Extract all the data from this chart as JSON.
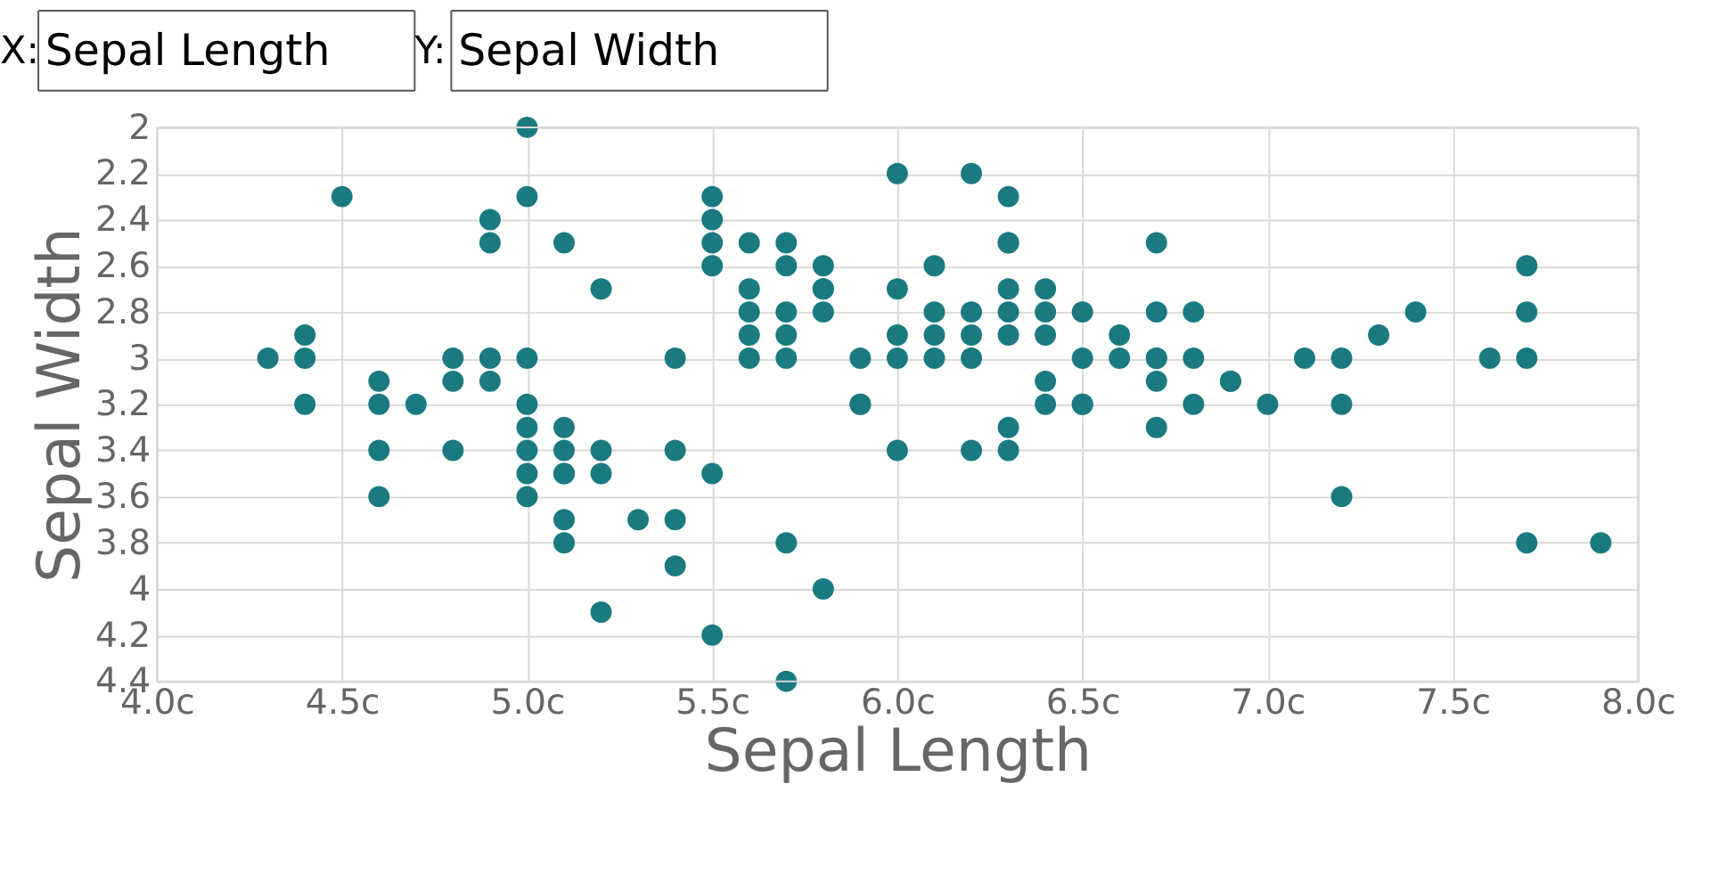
{
  "chart_data": {
    "type": "scatter",
    "xlabel": "Sepal Length",
    "ylabel": "Sepal Width",
    "annotations": [
      "X:",
      "Sepal Length",
      "Y:",
      "Sepal Width"
    ],
    "x": [
      5.1,
      4.9,
      4.7,
      4.6,
      5.0,
      5.4,
      4.6,
      5.0,
      4.4,
      4.9,
      5.4,
      4.8,
      4.8,
      4.3,
      5.8,
      5.7,
      5.7,
      5.1,
      5.4,
      5.1,
      4.6,
      5.1,
      5.0,
      5.2,
      5.2,
      4.8,
      5.2,
      5.5,
      5.0,
      5.5,
      4.4,
      5.1,
      5.0,
      4.5,
      4.4,
      5.1,
      4.6,
      5.3,
      5.0,
      7.0,
      6.4,
      6.9,
      5.5,
      6.5,
      5.7,
      6.3,
      4.9,
      6.6,
      5.2,
      5.0,
      5.9,
      6.0,
      6.1,
      5.6,
      6.7,
      5.6,
      5.8,
      6.2,
      5.6,
      5.9,
      6.1,
      6.3,
      6.4,
      6.6,
      6.8,
      6.7,
      6.0,
      5.7,
      5.5,
      6.0,
      5.4,
      6.0,
      6.3,
      5.5,
      5.5,
      6.1,
      5.8,
      5.0,
      5.6,
      5.7,
      5.7,
      6.2,
      5.1,
      7.1,
      6.3,
      6.5,
      7.6,
      4.9,
      7.3,
      6.7,
      7.2,
      6.5,
      6.4,
      6.8,
      5.7,
      5.8,
      7.7,
      7.7,
      5.6,
      7.7,
      6.3,
      6.7,
      7.2,
      6.2,
      6.4,
      7.2,
      7.4,
      7.9,
      6.3,
      6.1,
      7.7,
      6.3,
      6.4,
      6.0,
      6.9,
      6.8,
      6.7,
      6.3,
      6.2,
      5.9,
      6.2,
      5.8,
      6.5,
      6.7
    ],
    "series": [
      {
        "color": "#1a7a80",
        "values": [
          3.5,
          3.0,
          3.2,
          3.1,
          3.6,
          3.9,
          3.4,
          3.4,
          2.9,
          3.1,
          3.7,
          3.4,
          3.0,
          3.0,
          4.0,
          4.4,
          3.8,
          3.8,
          3.4,
          3.7,
          3.6,
          3.3,
          3.0,
          3.5,
          3.4,
          3.1,
          4.1,
          4.2,
          3.2,
          3.5,
          3.0,
          3.4,
          3.5,
          2.3,
          3.2,
          3.5,
          3.2,
          3.7,
          3.3,
          3.2,
          3.2,
          3.1,
          2.3,
          2.8,
          2.8,
          3.3,
          2.4,
          2.9,
          2.7,
          2.0,
          3.0,
          2.2,
          2.9,
          2.9,
          3.1,
          3.0,
          2.7,
          2.2,
          2.5,
          3.2,
          2.8,
          2.5,
          2.9,
          3.0,
          2.8,
          3.0,
          2.9,
          2.6,
          2.4,
          2.7,
          3.0,
          3.4,
          2.3,
          2.5,
          2.6,
          3.0,
          2.6,
          2.3,
          2.7,
          3.0,
          2.9,
          2.9,
          2.5,
          3.0,
          2.9,
          3.0,
          3.0,
          2.5,
          2.9,
          2.5,
          3.6,
          3.2,
          2.7,
          3.0,
          2.5,
          2.8,
          3.8,
          2.6,
          2.8,
          2.8,
          2.7,
          3.3,
          3.2,
          2.8,
          2.8,
          3.0,
          2.8,
          3.8,
          2.8,
          2.6,
          3.0,
          3.4,
          3.1,
          3.0,
          3.1,
          3.2,
          3.0,
          2.5,
          3.4,
          3.2,
          3.0,
          2.7,
          3.2,
          2.8
        ]
      }
    ],
    "xlim": [
      4.0,
      8.0
    ],
    "xticks": [
      {
        "value": 4.0,
        "label": "4.0c"
      },
      {
        "value": 4.5,
        "label": "4.5c"
      },
      {
        "value": 5.0,
        "label": "5.0c"
      },
      {
        "value": 5.5,
        "label": "5.5c"
      },
      {
        "value": 6.0,
        "label": "6.0c"
      },
      {
        "value": 6.5,
        "label": "6.5c"
      },
      {
        "value": 7.0,
        "label": "7.0c"
      },
      {
        "value": 7.5,
        "label": "7.5c"
      },
      {
        "value": 8.0,
        "label": "8.0c"
      }
    ],
    "ylim": [
      4.4,
      2
    ],
    "yticks": [
      2,
      2.2,
      2.4,
      2.6,
      2.8,
      3,
      3.2,
      3.4,
      3.6,
      3.8,
      4,
      4.2,
      4.4
    ],
    "grid": true,
    "marker": "circle",
    "legend": false
  }
}
